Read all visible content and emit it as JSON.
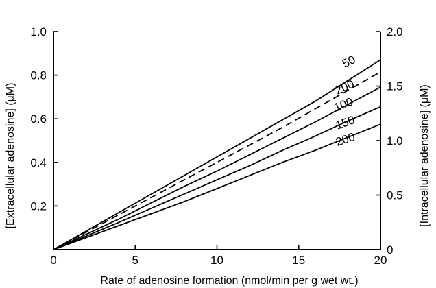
{
  "chart_data": {
    "type": "line",
    "xlabel": "Rate of adenosine formation (nmol/min per g wet wt.)",
    "ylabel_left": "[Extracellular adenosine] (μM)",
    "ylabel_right": "[Intracellular adenosine] (μM)",
    "xlim": [
      0,
      20
    ],
    "ylim_left": [
      0,
      1.0
    ],
    "ylim_right": [
      0,
      2.0
    ],
    "x_ticks": [
      "0",
      "5",
      "10",
      "15",
      "20"
    ],
    "y_ticks_left": [
      "",
      "0.2",
      "0.4",
      "0.6",
      "0.8",
      "1.0"
    ],
    "y_ticks_right": [
      "0",
      "0.5",
      "1.0",
      "1.5",
      "2.0"
    ],
    "grid": false,
    "legend": "none",
    "series": [
      {
        "name": "50",
        "axis": "left",
        "style": "solid",
        "x": [
          0,
          2,
          4,
          6,
          8,
          10,
          12,
          14,
          16,
          18,
          20
        ],
        "y": [
          0,
          0.085,
          0.17,
          0.255,
          0.34,
          0.425,
          0.51,
          0.595,
          0.68,
          0.775,
          0.87
        ]
      },
      {
        "name": "200",
        "axis": "right",
        "style": "dashed",
        "x": [
          0,
          2,
          4,
          6,
          8,
          10,
          12,
          14,
          16,
          18,
          20
        ],
        "y": [
          0,
          0.16,
          0.32,
          0.48,
          0.64,
          0.8,
          0.96,
          1.12,
          1.29,
          1.46,
          1.63
        ]
      },
      {
        "name": "100",
        "axis": "left",
        "style": "solid",
        "x": [
          0,
          2,
          4,
          6,
          8,
          10,
          12,
          14,
          16,
          18,
          20
        ],
        "y": [
          0,
          0.07,
          0.14,
          0.215,
          0.29,
          0.36,
          0.435,
          0.51,
          0.585,
          0.665,
          0.745
        ]
      },
      {
        "name": "150",
        "axis": "left",
        "style": "solid",
        "x": [
          0,
          2,
          4,
          6,
          8,
          10,
          12,
          14,
          16,
          18,
          20
        ],
        "y": [
          0,
          0.062,
          0.125,
          0.19,
          0.255,
          0.32,
          0.385,
          0.455,
          0.52,
          0.59,
          0.655
        ]
      },
      {
        "name": "200",
        "axis": "left",
        "style": "solid",
        "x": [
          0,
          2,
          4,
          6,
          8,
          10,
          12,
          14,
          16,
          18,
          20
        ],
        "y": [
          0,
          0.055,
          0.11,
          0.165,
          0.22,
          0.28,
          0.34,
          0.4,
          0.455,
          0.515,
          0.575
        ]
      }
    ],
    "curve_labels": [
      "50",
      "200",
      "100",
      "150",
      "200"
    ]
  }
}
